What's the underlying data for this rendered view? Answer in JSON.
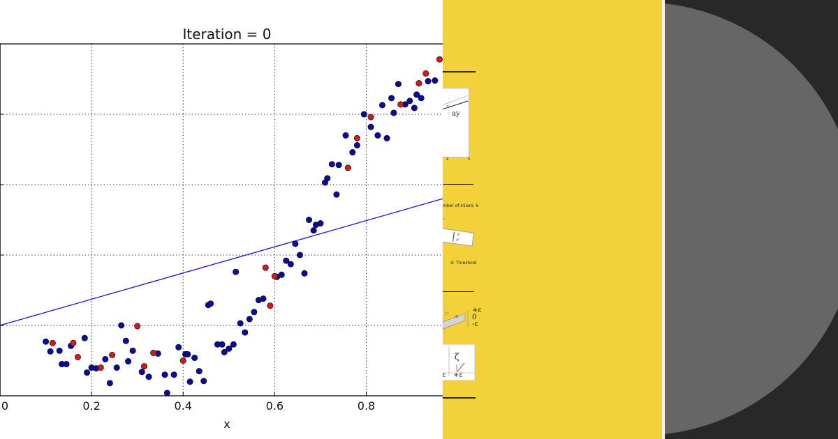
{
  "slide": {
    "inliers_text": "mber of inliers: 6",
    "threshold_text": "d: Threshold",
    "thumb_label_y": "ay",
    "sym_plus_eps": "+ε",
    "sym_zero": "0",
    "sym_minus_eps": "-ε",
    "sym_xi": "ζ",
    "sym_eps_left": "ε",
    "sym_eps_right": "+ε",
    "sym_d": "d",
    "tick_4": "4",
    "tick_5": "5",
    "colors": {
      "yellow": "#f2d13b",
      "dark": "#282828",
      "disc": "#666666"
    }
  },
  "chart_data": {
    "type": "scatter",
    "title": "Iteration = 0",
    "xlabel": "x",
    "ylabel": "",
    "xlim": [
      0.0,
      0.967
    ],
    "ylim": [
      -0.02,
      0.48
    ],
    "x_ticks": [
      0.0,
      0.2,
      0.4,
      0.6,
      0.8
    ],
    "x_tick_labels": [
      "0",
      "0.2",
      "0.4",
      "0.6",
      "0.8"
    ],
    "y_ticks": [
      0.08,
      0.18,
      0.28,
      0.38
    ],
    "grid": true,
    "colors": {
      "inlier": "#0b0b96",
      "sample": "#c81e1e",
      "line": "#2020c0"
    },
    "fit_line": {
      "x": [
        0.0,
        0.967
      ],
      "y": [
        0.08,
        0.26
      ]
    },
    "blue_points": [
      [
        0.1,
        0.057
      ],
      [
        0.11,
        0.043
      ],
      [
        0.13,
        0.044
      ],
      [
        0.135,
        0.025
      ],
      [
        0.145,
        0.025
      ],
      [
        0.155,
        0.051
      ],
      [
        0.185,
        0.062
      ],
      [
        0.19,
        0.013
      ],
      [
        0.2,
        0.02
      ],
      [
        0.21,
        0.019
      ],
      [
        0.23,
        0.032
      ],
      [
        0.24,
        -0.002
      ],
      [
        0.255,
        0.02
      ],
      [
        0.265,
        0.08
      ],
      [
        0.275,
        0.058
      ],
      [
        0.28,
        0.029
      ],
      [
        0.29,
        0.044
      ],
      [
        0.31,
        0.014
      ],
      [
        0.325,
        0.007
      ],
      [
        0.345,
        0.04
      ],
      [
        0.36,
        0.01
      ],
      [
        0.365,
        -0.016
      ],
      [
        0.38,
        0.01
      ],
      [
        0.39,
        0.049
      ],
      [
        0.405,
        0.039
      ],
      [
        0.41,
        0.039
      ],
      [
        0.415,
        0.0
      ],
      [
        0.425,
        0.034
      ],
      [
        0.435,
        0.015
      ],
      [
        0.445,
        0.001
      ],
      [
        0.455,
        0.109
      ],
      [
        0.46,
        0.111
      ],
      [
        0.475,
        0.053
      ],
      [
        0.485,
        0.053
      ],
      [
        0.49,
        0.042
      ],
      [
        0.5,
        0.047
      ],
      [
        0.51,
        0.053
      ],
      [
        0.515,
        0.156
      ],
      [
        0.525,
        0.083
      ],
      [
        0.535,
        0.07
      ],
      [
        0.545,
        0.089
      ],
      [
        0.555,
        0.099
      ],
      [
        0.565,
        0.116
      ],
      [
        0.575,
        0.118
      ],
      [
        0.605,
        0.149
      ],
      [
        0.615,
        0.152
      ],
      [
        0.625,
        0.172
      ],
      [
        0.635,
        0.167
      ],
      [
        0.645,
        0.196
      ],
      [
        0.655,
        0.18
      ],
      [
        0.665,
        0.154
      ],
      [
        0.675,
        0.23
      ],
      [
        0.685,
        0.215
      ],
      [
        0.69,
        0.223
      ],
      [
        0.7,
        0.225
      ],
      [
        0.71,
        0.283
      ],
      [
        0.715,
        0.289
      ],
      [
        0.725,
        0.309
      ],
      [
        0.735,
        0.266
      ],
      [
        0.74,
        0.308
      ],
      [
        0.755,
        0.35
      ],
      [
        0.77,
        0.326
      ],
      [
        0.78,
        0.336
      ],
      [
        0.795,
        0.38
      ],
      [
        0.81,
        0.362
      ],
      [
        0.825,
        0.35
      ],
      [
        0.835,
        0.393
      ],
      [
        0.845,
        0.346
      ],
      [
        0.855,
        0.403
      ],
      [
        0.86,
        0.382
      ],
      [
        0.87,
        0.423
      ],
      [
        0.885,
        0.394
      ],
      [
        0.895,
        0.399
      ],
      [
        0.905,
        0.389
      ],
      [
        0.91,
        0.408
      ],
      [
        0.92,
        0.403
      ],
      [
        0.935,
        0.427
      ],
      [
        0.95,
        0.428
      ]
    ],
    "red_points": [
      [
        0.115,
        0.055
      ],
      [
        0.16,
        0.055
      ],
      [
        0.17,
        0.035
      ],
      [
        0.22,
        0.02
      ],
      [
        0.245,
        0.038
      ],
      [
        0.3,
        0.079
      ],
      [
        0.315,
        0.022
      ],
      [
        0.335,
        0.041
      ],
      [
        0.4,
        0.03
      ],
      [
        0.58,
        0.162
      ],
      [
        0.59,
        0.108
      ],
      [
        0.6,
        0.15
      ],
      [
        0.76,
        0.304
      ],
      [
        0.78,
        0.346
      ],
      [
        0.81,
        0.376
      ],
      [
        0.875,
        0.394
      ],
      [
        0.915,
        0.424
      ],
      [
        0.93,
        0.438
      ],
      [
        0.96,
        0.458
      ]
    ]
  }
}
